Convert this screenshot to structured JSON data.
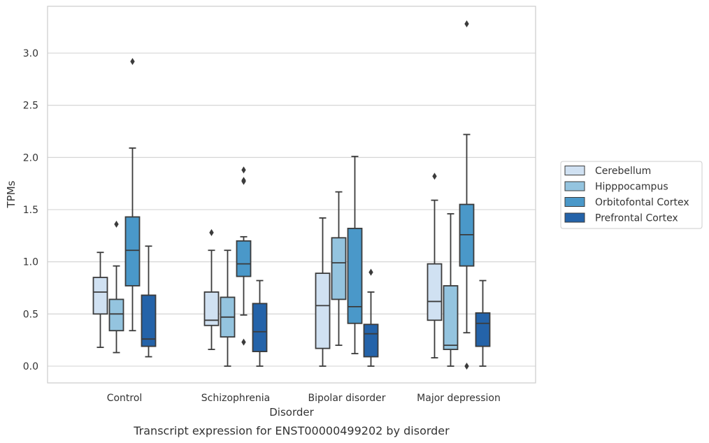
{
  "chart_data": {
    "type": "box",
    "title": "",
    "caption": "Transcript expression for ENST00000499202 by disorder",
    "xlabel": "Disorder",
    "ylabel": "TPMs",
    "ylim": [
      -0.16,
      3.45
    ],
    "yticks": [
      "0.0",
      "0.5",
      "1.0",
      "1.5",
      "2.0",
      "2.5",
      "3.0"
    ],
    "ytick_values": [
      0,
      0.5,
      1.0,
      1.5,
      2.0,
      2.5,
      3.0
    ],
    "grid": true,
    "legend_position": "right",
    "categories": [
      "Control",
      "Schizophrenia",
      "Bipolar disorder",
      "Major depression"
    ],
    "series": [
      {
        "name": "Cerebellum",
        "color": "#d0e1f2",
        "boxes": [
          {
            "whislo": 0.18,
            "q1": 0.5,
            "med": 0.71,
            "q3": 0.85,
            "whishi": 1.09,
            "fliers": []
          },
          {
            "whislo": 0.16,
            "q1": 0.39,
            "med": 0.44,
            "q3": 0.71,
            "whishi": 1.11,
            "fliers": [
              1.28
            ]
          },
          {
            "whislo": 0.0,
            "q1": 0.17,
            "med": 0.58,
            "q3": 0.89,
            "whishi": 1.42,
            "fliers": []
          },
          {
            "whislo": 0.08,
            "q1": 0.44,
            "med": 0.62,
            "q3": 0.98,
            "whishi": 1.59,
            "fliers": [
              1.82
            ]
          }
        ]
      },
      {
        "name": "Hipppocampus",
        "color": "#94c4df",
        "boxes": [
          {
            "whislo": 0.13,
            "q1": 0.34,
            "med": 0.5,
            "q3": 0.64,
            "whishi": 0.96,
            "fliers": [
              1.36
            ]
          },
          {
            "whislo": 0.0,
            "q1": 0.28,
            "med": 0.47,
            "q3": 0.66,
            "whishi": 1.11,
            "fliers": []
          },
          {
            "whislo": 0.2,
            "q1": 0.64,
            "med": 0.99,
            "q3": 1.23,
            "whishi": 1.67,
            "fliers": []
          },
          {
            "whislo": 0.0,
            "q1": 0.16,
            "med": 0.2,
            "q3": 0.77,
            "whishi": 1.46,
            "fliers": []
          }
        ]
      },
      {
        "name": "Orbitofontal Cortex",
        "color": "#4a98c9",
        "boxes": [
          {
            "whislo": 0.34,
            "q1": 0.77,
            "med": 1.11,
            "q3": 1.43,
            "whishi": 2.09,
            "fliers": [
              2.92
            ]
          },
          {
            "whislo": 0.49,
            "q1": 0.86,
            "med": 0.98,
            "q3": 1.2,
            "whishi": 1.24,
            "fliers": [
              1.88,
              1.78,
              1.77,
              0.23
            ]
          },
          {
            "whislo": 0.12,
            "q1": 0.41,
            "med": 0.57,
            "q3": 1.32,
            "whishi": 2.01,
            "fliers": []
          },
          {
            "whislo": 0.32,
            "q1": 0.96,
            "med": 1.26,
            "q3": 1.55,
            "whishi": 2.22,
            "fliers": [
              3.28,
              0.0
            ]
          }
        ]
      },
      {
        "name": "Prefrontal Cortex",
        "color": "#2463a9",
        "boxes": [
          {
            "whislo": 0.09,
            "q1": 0.19,
            "med": 0.26,
            "q3": 0.68,
            "whishi": 1.15,
            "fliers": []
          },
          {
            "whislo": 0.0,
            "q1": 0.14,
            "med": 0.33,
            "q3": 0.6,
            "whishi": 0.82,
            "fliers": []
          },
          {
            "whislo": 0.0,
            "q1": 0.09,
            "med": 0.31,
            "q3": 0.4,
            "whishi": 0.71,
            "fliers": [
              0.9
            ]
          },
          {
            "whislo": 0.0,
            "q1": 0.19,
            "med": 0.41,
            "q3": 0.51,
            "whishi": 0.82,
            "fliers": []
          }
        ]
      }
    ]
  }
}
